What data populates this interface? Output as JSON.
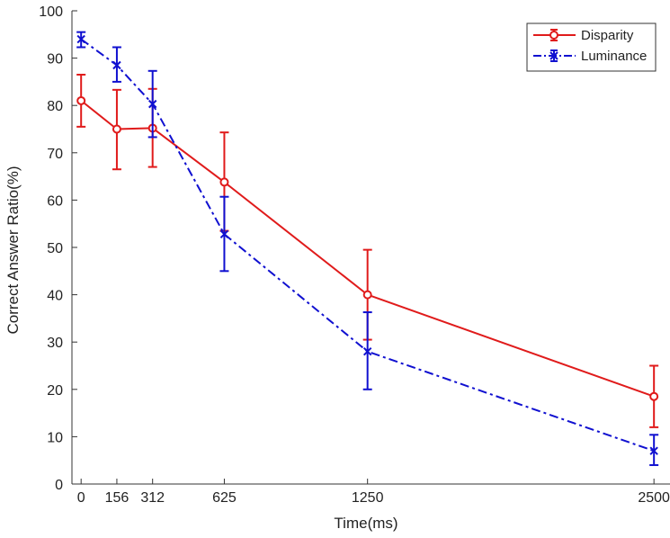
{
  "chart_data": {
    "type": "line",
    "title": "",
    "xlabel": "Time(ms)",
    "ylabel": "Correct Answer Ratio(%)",
    "x": [
      0,
      156,
      312,
      625,
      1250,
      2500
    ],
    "xticks": [
      0,
      156,
      312,
      625,
      1250,
      2500
    ],
    "xtick_labels": [
      "0",
      "156",
      "312",
      "625",
      "1250",
      "2500"
    ],
    "xlim": [
      -40,
      2570
    ],
    "ylim": [
      0,
      100
    ],
    "yticks": [
      0,
      10,
      20,
      30,
      40,
      50,
      60,
      70,
      80,
      90,
      100
    ],
    "ytick_labels": [
      "0",
      "10",
      "20",
      "30",
      "40",
      "50",
      "60",
      "70",
      "80",
      "90",
      "100"
    ],
    "grid": false,
    "legend_position": "top-right",
    "series": [
      {
        "name": "Disparity",
        "color": "#e01b1b",
        "marker": "circle",
        "linestyle": "solid",
        "values": [
          81,
          75,
          75.2,
          63.8,
          40,
          18.5
        ],
        "error_low": [
          75.5,
          66.5,
          67,
          53.5,
          30.5,
          12
        ],
        "error_high": [
          86.5,
          83.3,
          83.5,
          74.3,
          49.5,
          25
        ]
      },
      {
        "name": "Luminance",
        "color": "#1010d0",
        "marker": "x",
        "linestyle": "dashdot",
        "values": [
          94,
          88.5,
          80.3,
          52.8,
          28,
          7
        ],
        "error_low": [
          92.3,
          85,
          73.3,
          45,
          20,
          4
        ],
        "error_high": [
          95.5,
          92.3,
          87.3,
          60.7,
          36.3,
          10.4
        ]
      }
    ]
  }
}
